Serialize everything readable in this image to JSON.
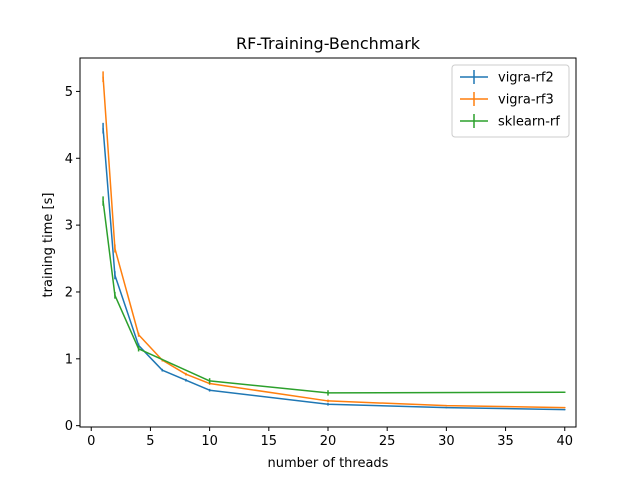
{
  "chart_data": {
    "type": "line",
    "title": "RF-Training-Benchmark",
    "xlabel": "number of threads",
    "ylabel": "training time [s]",
    "xlim": [
      -0.95,
      40.95
    ],
    "ylim": [
      -0.02,
      5.5
    ],
    "xticks": [
      0,
      5,
      10,
      15,
      20,
      25,
      30,
      35,
      40
    ],
    "yticks": [
      0,
      1,
      2,
      3,
      4,
      5
    ],
    "legend_position": "top-right",
    "grid": false,
    "series": [
      {
        "name": "vigra-rf2",
        "color": "#1f77b4",
        "x": [
          1,
          2,
          4,
          6,
          8,
          10,
          20,
          30,
          40
        ],
        "y": [
          4.45,
          2.25,
          1.2,
          0.83,
          0.68,
          0.53,
          0.32,
          0.27,
          0.24
        ],
        "err": [
          0.08,
          0.06,
          0.03,
          0.02,
          0.02,
          0.02,
          0.02,
          0.01,
          0.01
        ]
      },
      {
        "name": "vigra-rf3",
        "color": "#ff7f0e",
        "x": [
          1,
          2,
          4,
          6,
          8,
          10,
          20,
          30,
          40
        ],
        "y": [
          5.22,
          2.65,
          1.36,
          0.98,
          0.77,
          0.63,
          0.37,
          0.3,
          0.27
        ],
        "err": [
          0.08,
          0.06,
          0.03,
          0.02,
          0.02,
          0.02,
          0.02,
          0.01,
          0.01
        ]
      },
      {
        "name": "sklearn-rf",
        "color": "#2ca02c",
        "x": [
          1,
          2,
          4,
          10,
          20,
          40
        ],
        "y": [
          3.36,
          1.95,
          1.15,
          0.67,
          0.49,
          0.5
        ],
        "err": [
          0.07,
          0.05,
          0.04,
          0.04,
          0.04,
          0.01
        ]
      }
    ]
  }
}
